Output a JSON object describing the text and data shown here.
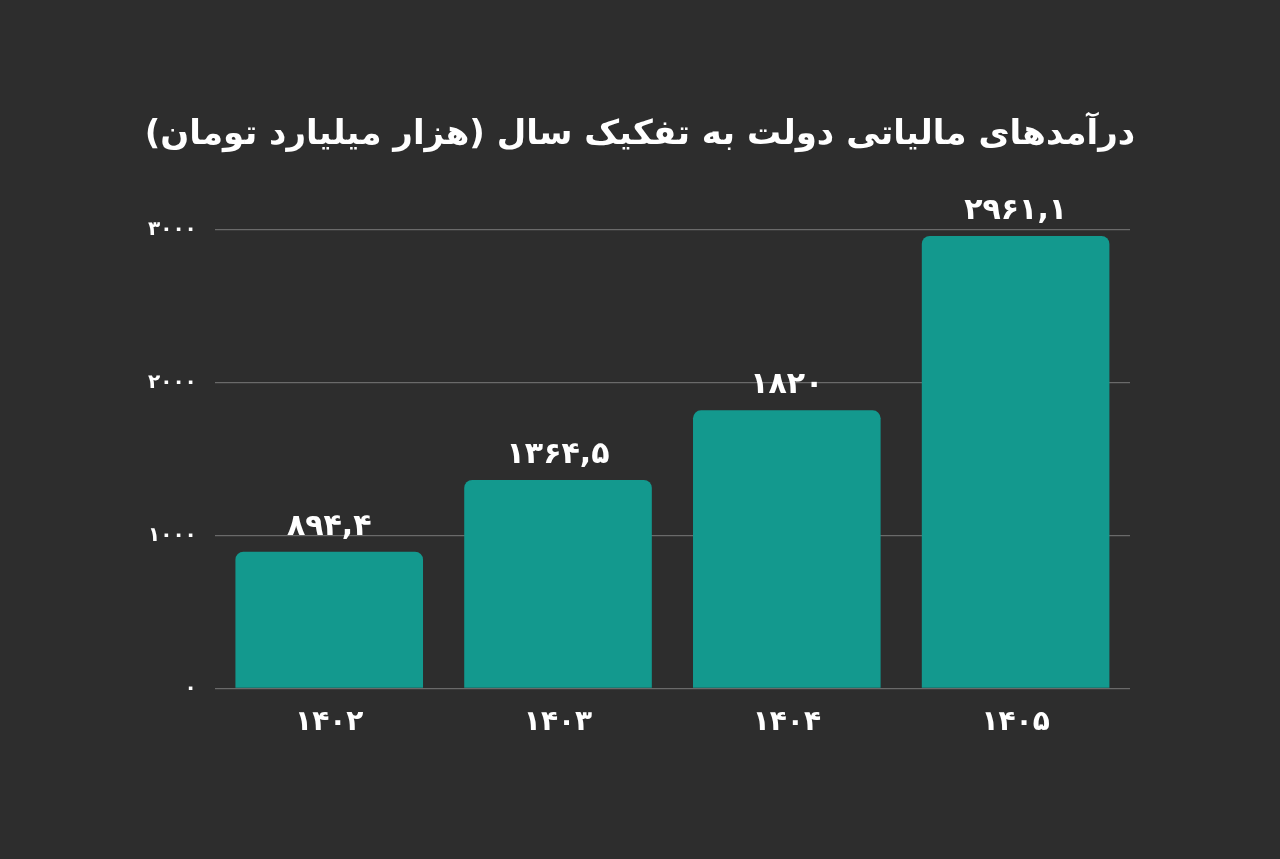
{
  "chart_data": {
    "type": "bar",
    "title": "درآمدهای مالیاتی دولت به تفکیک سال (هزار میلیارد تومان)",
    "categories": [
      "۱۴۰۲",
      "۱۴۰۳",
      "۱۴۰۴",
      "۱۴۰۵"
    ],
    "values": [
      894.4,
      1364.5,
      1820,
      2961.1
    ],
    "value_labels": [
      "۸۹۴,۴",
      "۱۳۶۴,۵",
      "۱۸۲۰",
      "۲۹۶۱,۱"
    ],
    "color": "#13998e",
    "ylim": [
      0,
      3000
    ],
    "yticks": [
      {
        "value": 0,
        "label": "۰"
      },
      {
        "value": 1000,
        "label": "۱۰۰۰"
      },
      {
        "value": 2000,
        "label": "۲۰۰۰"
      },
      {
        "value": 3000,
        "label": "۳۰۰۰"
      }
    ],
    "grid": "y",
    "legend": false
  }
}
